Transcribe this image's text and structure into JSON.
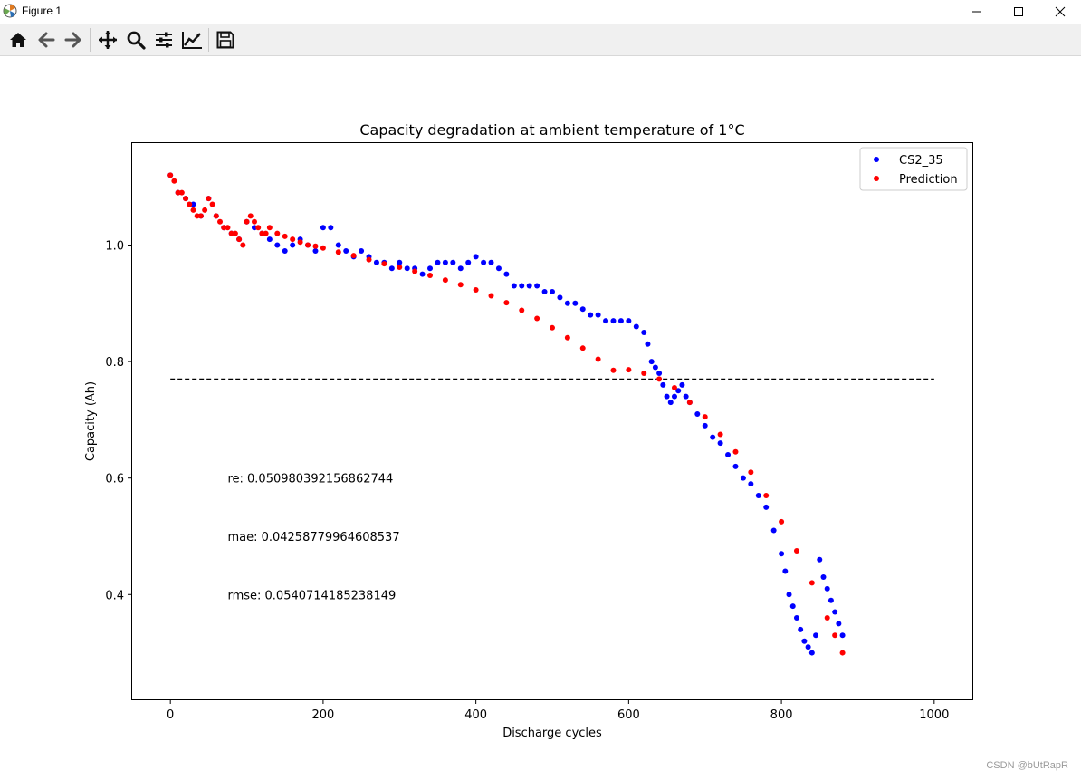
{
  "window": {
    "title": "Figure 1",
    "controls": [
      "minimize",
      "maximize",
      "close"
    ]
  },
  "toolbar": {
    "icons": [
      "home-icon",
      "back-arrow-icon",
      "forward-arrow-icon",
      "pan-icon",
      "zoom-icon",
      "configure-subplots-icon",
      "edit-axes-icon",
      "save-icon"
    ]
  },
  "chart_data": {
    "type": "scatter",
    "title": "Capacity degradation at ambient temperature of 1°C",
    "xlabel": "Discharge cycles",
    "ylabel": "Capacity (Ah)",
    "xlim": [
      -50,
      1050
    ],
    "ylim": [
      0.22,
      1.175
    ],
    "xticks": [
      0,
      200,
      400,
      600,
      800,
      1000
    ],
    "yticks": [
      0.4,
      0.6,
      0.8,
      1.0
    ],
    "xtick_labels": [
      "0",
      "200",
      "400",
      "600",
      "800",
      "1000"
    ],
    "ytick_labels": [
      "0.4",
      "0.6",
      "0.8",
      "1.0"
    ],
    "legend": {
      "position": "top-right",
      "entries": [
        "CS2_35",
        "Prediction"
      ]
    },
    "colors": {
      "CS2_35": "#0000ff",
      "Prediction": "#ff0000",
      "threshold": "#000000"
    },
    "threshold": {
      "y": 0.77,
      "x_range": [
        0,
        1000
      ],
      "style": "dashed"
    },
    "annotations": [
      {
        "text": "re: 0.050980392156862744",
        "x": 75,
        "y": 0.6
      },
      {
        "text": "mae: 0.04258779964608537",
        "x": 75,
        "y": 0.5
      },
      {
        "text": "rmse: 0.0540714185238149",
        "x": 75,
        "y": 0.4
      }
    ],
    "series": [
      {
        "name": "CS2_35",
        "x": [
          0,
          10,
          20,
          30,
          40,
          50,
          60,
          70,
          80,
          90,
          100,
          110,
          120,
          130,
          140,
          150,
          160,
          170,
          180,
          190,
          200,
          210,
          220,
          230,
          240,
          250,
          260,
          270,
          280,
          290,
          300,
          310,
          320,
          330,
          340,
          350,
          360,
          370,
          380,
          390,
          400,
          410,
          420,
          430,
          440,
          450,
          460,
          470,
          480,
          490,
          500,
          510,
          520,
          530,
          540,
          550,
          560,
          570,
          580,
          590,
          600,
          610,
          620,
          625,
          630,
          635,
          640,
          645,
          650,
          655,
          660,
          665,
          670,
          675,
          680,
          690,
          700,
          710,
          720,
          730,
          740,
          750,
          760,
          770,
          780,
          790,
          800,
          805,
          810,
          815,
          820,
          825,
          830,
          835,
          840,
          845,
          850,
          855,
          860,
          865,
          870,
          875,
          880
        ],
        "y": [
          1.12,
          1.09,
          1.08,
          1.07,
          1.05,
          1.08,
          1.05,
          1.03,
          1.02,
          1.01,
          1.04,
          1.03,
          1.02,
          1.01,
          1.0,
          0.99,
          1.0,
          1.01,
          1.0,
          0.99,
          1.03,
          1.03,
          1.0,
          0.99,
          0.98,
          0.99,
          0.98,
          0.97,
          0.97,
          0.96,
          0.97,
          0.96,
          0.96,
          0.95,
          0.96,
          0.97,
          0.97,
          0.97,
          0.96,
          0.97,
          0.98,
          0.97,
          0.97,
          0.96,
          0.95,
          0.93,
          0.93,
          0.93,
          0.93,
          0.92,
          0.92,
          0.91,
          0.9,
          0.9,
          0.89,
          0.88,
          0.88,
          0.87,
          0.87,
          0.87,
          0.87,
          0.86,
          0.85,
          0.83,
          0.8,
          0.79,
          0.78,
          0.76,
          0.74,
          0.73,
          0.74,
          0.75,
          0.76,
          0.74,
          0.73,
          0.71,
          0.69,
          0.67,
          0.66,
          0.64,
          0.62,
          0.6,
          0.59,
          0.57,
          0.55,
          0.51,
          0.47,
          0.44,
          0.4,
          0.38,
          0.36,
          0.34,
          0.32,
          0.31,
          0.3,
          0.33,
          0.46,
          0.43,
          0.41,
          0.39,
          0.37,
          0.35,
          0.33
        ]
      },
      {
        "name": "Prediction",
        "x": [
          0,
          5,
          10,
          15,
          20,
          25,
          30,
          35,
          40,
          45,
          50,
          55,
          60,
          65,
          70,
          75,
          80,
          85,
          90,
          95,
          100,
          105,
          110,
          115,
          120,
          125,
          130,
          140,
          150,
          160,
          170,
          180,
          190,
          200,
          220,
          240,
          260,
          280,
          300,
          320,
          340,
          360,
          380,
          400,
          420,
          440,
          460,
          480,
          500,
          520,
          540,
          560,
          580,
          600,
          620,
          640,
          660,
          680,
          700,
          720,
          740,
          760,
          780,
          800,
          820,
          840,
          860,
          870,
          880
        ],
        "y": [
          1.12,
          1.11,
          1.09,
          1.09,
          1.08,
          1.07,
          1.06,
          1.05,
          1.05,
          1.06,
          1.08,
          1.07,
          1.05,
          1.04,
          1.03,
          1.03,
          1.02,
          1.02,
          1.01,
          1.0,
          1.04,
          1.05,
          1.04,
          1.03,
          1.02,
          1.02,
          1.03,
          1.02,
          1.015,
          1.01,
          1.005,
          1.0,
          0.998,
          0.995,
          0.988,
          0.982,
          0.975,
          0.968,
          0.962,
          0.955,
          0.948,
          0.94,
          0.932,
          0.923,
          0.913,
          0.901,
          0.888,
          0.874,
          0.858,
          0.841,
          0.823,
          0.804,
          0.785,
          0.786,
          0.78,
          0.77,
          0.755,
          0.73,
          0.705,
          0.675,
          0.645,
          0.61,
          0.57,
          0.525,
          0.475,
          0.42,
          0.36,
          0.33,
          0.3
        ]
      }
    ]
  },
  "watermark": "CSDN @bUtRapR"
}
